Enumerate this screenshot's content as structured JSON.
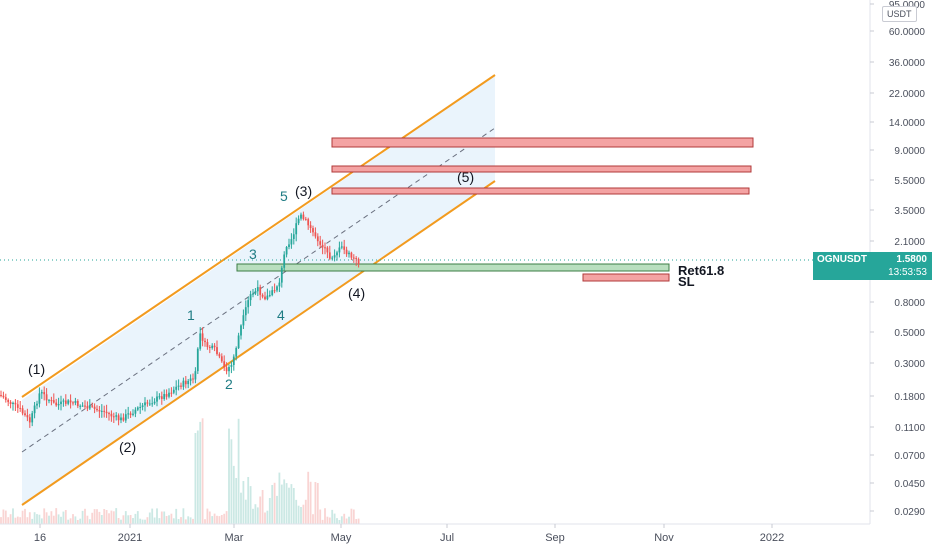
{
  "window": {
    "title": "OGNUSDT"
  },
  "price_axis": {
    "unit_label": "USDT",
    "ticks": [
      "95.0000",
      "60.0000",
      "36.0000",
      "22.0000",
      "14.0000",
      "9.0000",
      "5.5000",
      "3.5000",
      "2.1000",
      "0.8000",
      "0.5000",
      "0.3000",
      "0.1800",
      "0.1100",
      "0.0700",
      "0.0450",
      "0.0290"
    ],
    "scale": "log"
  },
  "time_axis": {
    "ticks": [
      "16",
      "2021",
      "Mar",
      "May",
      "Jul",
      "Sep",
      "Nov",
      "2022"
    ]
  },
  "current_price": {
    "symbol": "OGNUSDT",
    "price": "1.5800",
    "countdown": "13:53:53",
    "color": "#26a69a"
  },
  "wave_labels": {
    "major": [
      "(1)",
      "(2)",
      "(3)",
      "(4)",
      "(5)"
    ],
    "minor": [
      "1",
      "2",
      "3",
      "4",
      "5"
    ]
  },
  "zones": {
    "retracement_label": "Ret61.8",
    "stop_loss_label": "SL",
    "resistance_color": "#f4a3a3",
    "retracement_color": "#b9dfbf"
  },
  "colors": {
    "channel": "#f29b1f",
    "channel_fill": "#e3f0fb",
    "bull": "#26a69a",
    "bear": "#ef5350"
  }
}
